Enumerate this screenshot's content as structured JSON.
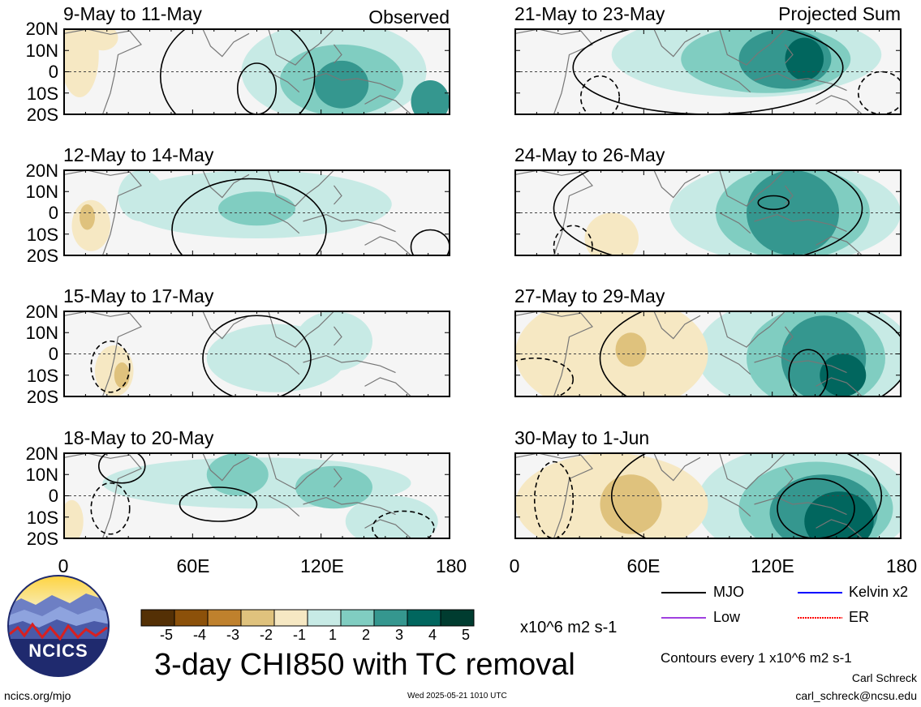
{
  "observed_label": "Observed",
  "projected_label": "Projected Sum",
  "panels_left": [
    {
      "title": "9-May to 11-May"
    },
    {
      "title": "12-May to 14-May"
    },
    {
      "title": "15-May to 17-May"
    },
    {
      "title": "18-May to 20-May"
    }
  ],
  "panels_right": [
    {
      "title": "21-May to 23-May"
    },
    {
      "title": "24-May to 26-May"
    },
    {
      "title": "27-May to 29-May"
    },
    {
      "title": "30-May to 1-Jun"
    }
  ],
  "lat_labels": [
    "20N",
    "10N",
    "0",
    "10S",
    "20S"
  ],
  "lon_labels": [
    "0",
    "60E",
    "120E",
    "180"
  ],
  "colorbar": {
    "ticks": [
      "-5",
      "-4",
      "-3",
      "-2",
      "-1",
      "1",
      "2",
      "3",
      "4",
      "5"
    ],
    "colors": [
      "#543005",
      "#8c510a",
      "#bf812d",
      "#dfc27d",
      "#f6e8c3",
      "#f5f5f5",
      "#c7eae5",
      "#80cdc1",
      "#35978f",
      "#01665e",
      "#003c30"
    ],
    "units": "x10^6 m2 s-1"
  },
  "main_title": "3-day CHI850 with TC removal",
  "legend": [
    {
      "label": "MJO",
      "color": "#000000"
    },
    {
      "label": "Kelvin x2",
      "color": "#0000ff"
    },
    {
      "label": "Low",
      "color": "#a040e0"
    },
    {
      "label": "ER",
      "color": "#ff0000"
    }
  ],
  "contours_note": "Contours every 1 x10^6 m2 s-1",
  "author": "Carl Schreck",
  "email": "carl_schreck@ncsu.edu",
  "url": "ncics.org/mjo",
  "timestamp": "Wed 2025-05-21 1010 UTC",
  "logo_text": "NCICS"
}
